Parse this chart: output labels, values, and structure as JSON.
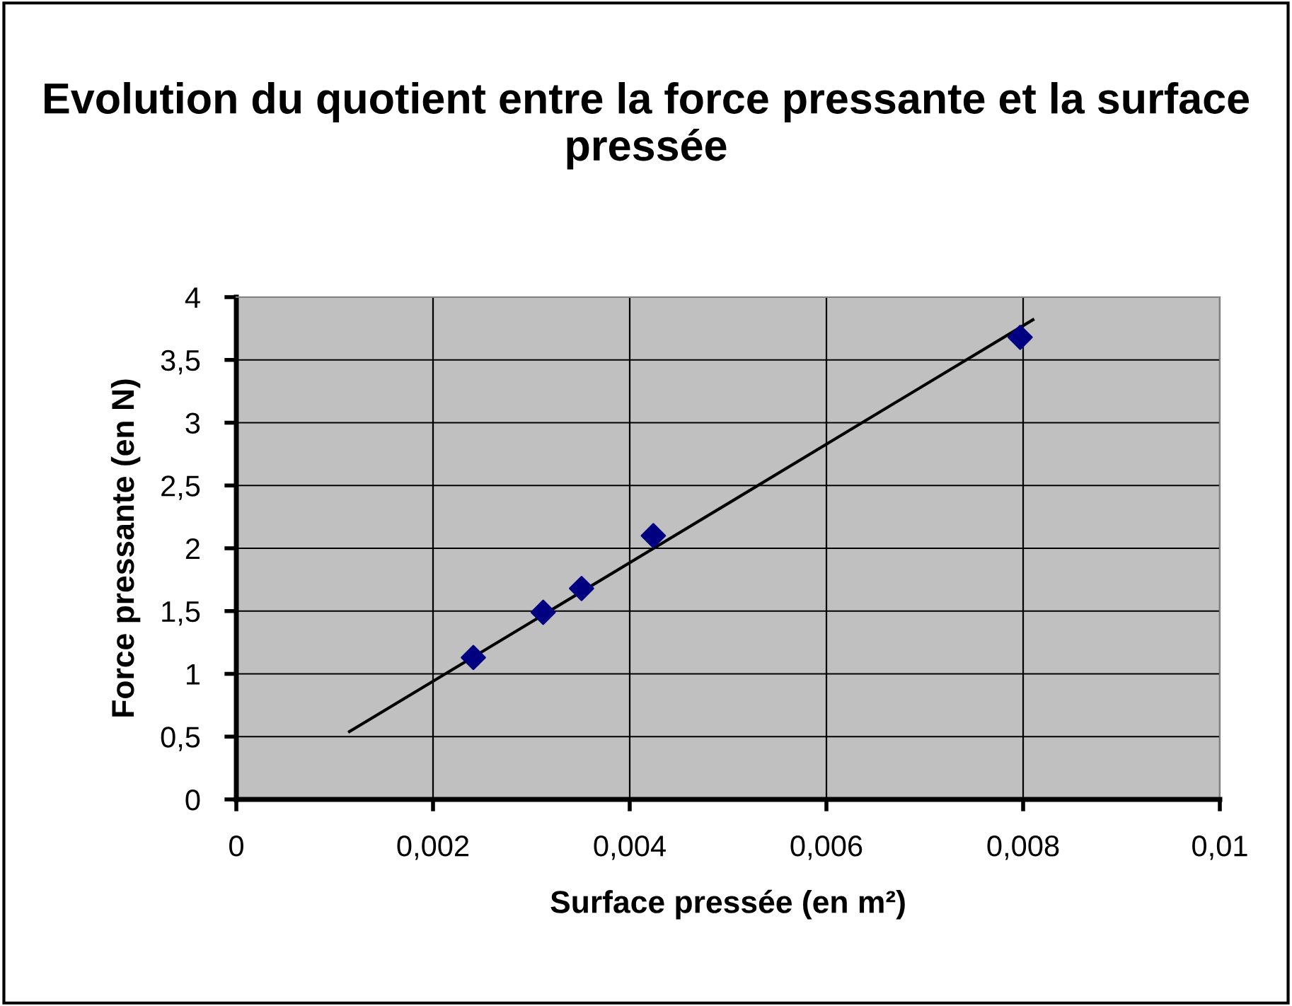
{
  "chart_data": {
    "type": "scatter",
    "title": "Evolution du quotient entre la force pressante et la surface pressée",
    "xlabel": "Surface pressée (en m²)",
    "ylabel": "Force pressante (en N)",
    "series": [
      {
        "color": "#000080",
        "marker": "diamond",
        "x": [
          0.00241,
          0.00312,
          0.00351,
          0.00424,
          0.00797
        ],
        "values": [
          1.13,
          1.49,
          1.68,
          2.1,
          3.68
        ]
      },
      {
        "type": "line",
        "color": "#000000",
        "marker": "none",
        "line_style": "solid",
        "x": [
          0.00115,
          0.0081
        ],
        "values": [
          0.54,
          3.82
        ]
      }
    ],
    "xlim": [
      0,
      0.01
    ],
    "xticks": [
      {
        "value": 0,
        "label": "0"
      },
      {
        "value": 0.002,
        "label": "0,002"
      },
      {
        "value": 0.004,
        "label": "0,004"
      },
      {
        "value": 0.006,
        "label": "0,006"
      },
      {
        "value": 0.008,
        "label": "0,008"
      },
      {
        "value": 0.01,
        "label": "0,01"
      }
    ],
    "ylim": [
      0,
      4
    ],
    "yticks": [
      {
        "value": 0,
        "label": "0"
      },
      {
        "value": 0.5,
        "label": "0,5"
      },
      {
        "value": 1,
        "label": "1"
      },
      {
        "value": 1.5,
        "label": "1,5"
      },
      {
        "value": 2,
        "label": "2"
      },
      {
        "value": 2.5,
        "label": "2,5"
      },
      {
        "value": 3,
        "label": "3"
      },
      {
        "value": 3.5,
        "label": "3,5"
      },
      {
        "value": 4,
        "label": "4"
      }
    ],
    "grid": true,
    "legend": false
  }
}
